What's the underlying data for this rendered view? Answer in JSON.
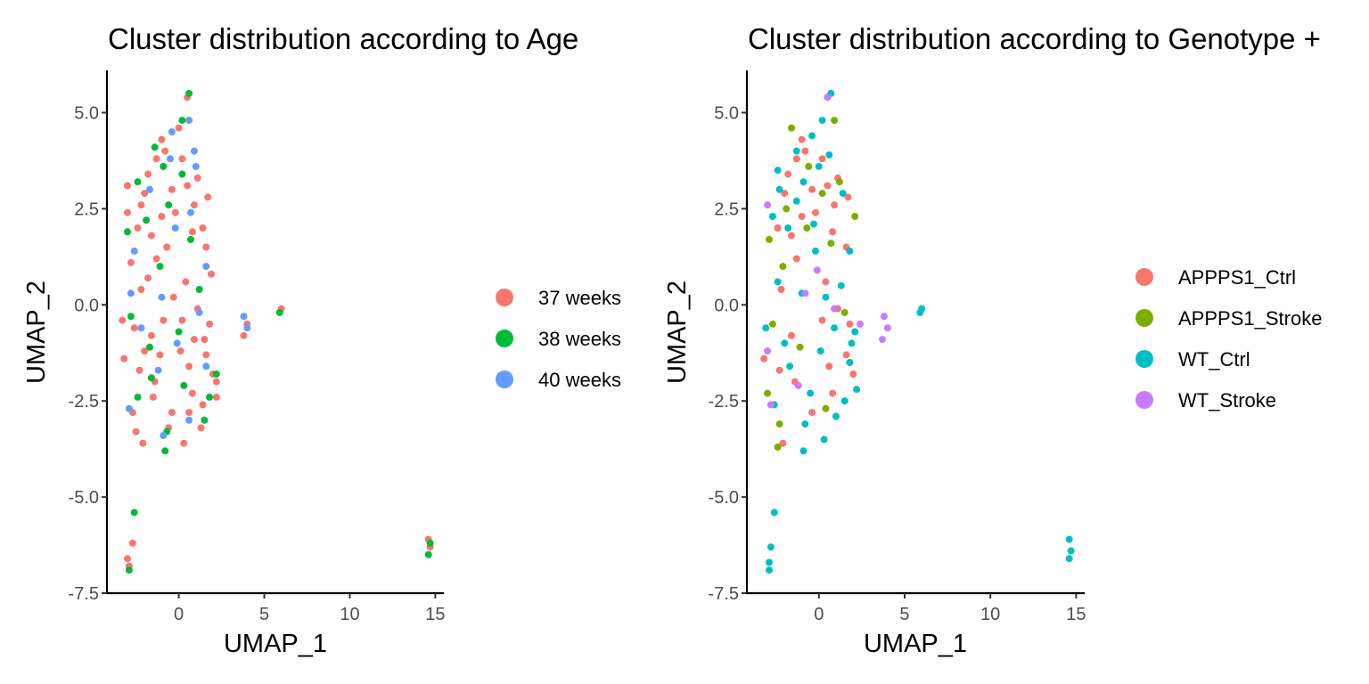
{
  "chart_data": [
    {
      "type": "scatter",
      "title": "Cluster distribution according to Age",
      "xlabel": "UMAP_1",
      "ylabel": "UMAP_2",
      "xlim": [
        -4.2,
        15.5
      ],
      "ylim": [
        -7.5,
        6.1
      ],
      "xticks": [
        0,
        5,
        10,
        15
      ],
      "yticks": [
        -7.5,
        -5.0,
        -2.5,
        0.0,
        2.5,
        5.0
      ],
      "xtick_labels": [
        "0",
        "5",
        "10",
        "15"
      ],
      "ytick_labels": [
        "-7.5",
        "-5.0",
        "-2.5",
        "0.0",
        "2.5",
        "5.0"
      ],
      "legend_position": "right",
      "grid": false,
      "series": [
        {
          "name": "37 weeks",
          "color": "#F8766D",
          "points": [
            [
              -1.8,
              3.4
            ],
            [
              -1.0,
              4.3
            ],
            [
              0.2,
              3.8
            ],
            [
              0.9,
              2.6
            ],
            [
              1.6,
              1.5
            ],
            [
              -2.4,
              2.0
            ],
            [
              -3.0,
              2.4
            ],
            [
              -1.3,
              1.2
            ],
            [
              0.4,
              0.6
            ],
            [
              1.8,
              -0.5
            ],
            [
              -2.6,
              -0.6
            ],
            [
              -3.2,
              -1.4
            ],
            [
              -1.4,
              -2.0
            ],
            [
              -0.4,
              -2.8
            ],
            [
              0.8,
              -2.3
            ],
            [
              2.0,
              -1.8
            ],
            [
              1.3,
              -3.2
            ],
            [
              -2.1,
              -3.6
            ],
            [
              -0.6,
              -3.2
            ],
            [
              -1.6,
              -0.8
            ],
            [
              0.1,
              -1.2
            ],
            [
              2.2,
              -2.4
            ],
            [
              1.6,
              -1.3
            ],
            [
              -0.8,
              4.0
            ],
            [
              0.5,
              5.4
            ],
            [
              0.0,
              4.6
            ],
            [
              -2.0,
              2.9
            ],
            [
              -1.0,
              2.3
            ],
            [
              1.1,
              3.3
            ],
            [
              -2.8,
              1.1
            ],
            [
              -2.2,
              0.4
            ],
            [
              -0.3,
              0.2
            ],
            [
              1.1,
              -0.1
            ],
            [
              -3.3,
              -0.4
            ],
            [
              -2.3,
              -1.7
            ],
            [
              -1.1,
              -1.3
            ],
            [
              0.6,
              -1.6
            ],
            [
              1.4,
              -2.6
            ],
            [
              -2.7,
              -2.8
            ],
            [
              0.3,
              -3.6
            ],
            [
              -0.4,
              3.0
            ],
            [
              0.8,
              1.9
            ],
            [
              -1.6,
              1.8
            ],
            [
              -3.0,
              3.1
            ],
            [
              1.7,
              2.8
            ],
            [
              0.2,
              -0.4
            ],
            [
              -2.5,
              -3.3
            ],
            [
              -3.0,
              -6.6
            ],
            [
              -2.7,
              -6.2
            ],
            [
              -2.9,
              -6.8
            ],
            [
              14.6,
              -6.1
            ],
            [
              14.7,
              -6.3
            ],
            [
              3.8,
              -0.8
            ],
            [
              4.0,
              -0.5
            ],
            [
              6.0,
              -0.1
            ],
            [
              2.2,
              -2.0
            ],
            [
              1.9,
              0.8
            ],
            [
              -1.5,
              -2.4
            ],
            [
              0.6,
              -2.8
            ],
            [
              -0.9,
              -0.4
            ],
            [
              1.5,
              -0.9
            ],
            [
              -2.0,
              -1.2
            ],
            [
              -0.2,
              2.4
            ],
            [
              -1.3,
              3.8
            ],
            [
              0.5,
              3.1
            ],
            [
              -0.7,
              1.5
            ],
            [
              1.4,
              2.0
            ],
            [
              -2.2,
              2.6
            ],
            [
              0.9,
              -0.9
            ],
            [
              -1.8,
              0.7
            ]
          ]
        },
        {
          "name": "38 weeks",
          "color": "#00BA38",
          "points": [
            [
              0.6,
              5.5
            ],
            [
              0.2,
              4.8
            ],
            [
              -1.4,
              4.1
            ],
            [
              -0.9,
              3.6
            ],
            [
              -2.4,
              3.2
            ],
            [
              -3.0,
              1.9
            ],
            [
              -0.6,
              2.6
            ],
            [
              0.7,
              1.7
            ],
            [
              1.2,
              0.4
            ],
            [
              -2.8,
              -0.3
            ],
            [
              -1.7,
              -1.1
            ],
            [
              0.0,
              -0.7
            ],
            [
              1.8,
              -2.4
            ],
            [
              -0.7,
              -3.3
            ],
            [
              -0.8,
              -3.8
            ],
            [
              2.2,
              -1.8
            ],
            [
              -2.4,
              -2.4
            ],
            [
              0.3,
              -2.1
            ],
            [
              -2.6,
              -5.4
            ],
            [
              -2.9,
              -6.9
            ],
            [
              14.6,
              -6.5
            ],
            [
              14.7,
              -6.2
            ],
            [
              5.9,
              -0.2
            ],
            [
              -1.9,
              2.2
            ],
            [
              0.2,
              3.4
            ],
            [
              1.5,
              -3.0
            ],
            [
              -1.1,
              1.0
            ],
            [
              -1.6,
              -1.9
            ]
          ]
        },
        {
          "name": "40 weeks",
          "color": "#619CFF",
          "points": [
            [
              0.6,
              4.8
            ],
            [
              -0.4,
              4.5
            ],
            [
              0.9,
              4.0
            ],
            [
              1.0,
              3.6
            ],
            [
              0.7,
              2.4
            ],
            [
              -1.7,
              3.0
            ],
            [
              -0.2,
              2.0
            ],
            [
              1.6,
              1.0
            ],
            [
              1.2,
              -0.2
            ],
            [
              -2.8,
              0.3
            ],
            [
              -2.2,
              -0.6
            ],
            [
              -0.1,
              -1.0
            ],
            [
              -1.2,
              -1.7
            ],
            [
              1.6,
              -1.6
            ],
            [
              -2.9,
              -2.7
            ],
            [
              -0.9,
              -3.4
            ],
            [
              0.6,
              -3.0
            ],
            [
              3.8,
              -0.3
            ],
            [
              4.0,
              -0.6
            ],
            [
              -2.6,
              1.4
            ],
            [
              -0.5,
              3.8
            ],
            [
              -1.0,
              0.2
            ]
          ]
        }
      ],
      "legend": {
        "items": [
          {
            "label": "37 weeks",
            "color": "#F8766D"
          },
          {
            "label": "38 weeks",
            "color": "#00BA38"
          },
          {
            "label": "40 weeks",
            "color": "#619CFF"
          }
        ]
      }
    },
    {
      "type": "scatter",
      "title": "Cluster distribution according to Genotype +",
      "xlabel": "UMAP_1",
      "ylabel": "UMAP_2",
      "xlim": [
        -4.2,
        15.5
      ],
      "ylim": [
        -7.5,
        6.1
      ],
      "xticks": [
        0,
        5,
        10,
        15
      ],
      "yticks": [
        -7.5,
        -5.0,
        -2.5,
        0.0,
        2.5,
        5.0
      ],
      "xtick_labels": [
        "0",
        "5",
        "10",
        "15"
      ],
      "ytick_labels": [
        "-7.5",
        "-5.0",
        "-2.5",
        "0.0",
        "2.5",
        "5.0"
      ],
      "legend_position": "right",
      "grid": false,
      "series": [
        {
          "name": "APPPS1_Ctrl",
          "color": "#F8766D",
          "points": [
            [
              -1.8,
              3.4
            ],
            [
              -1.0,
              4.3
            ],
            [
              0.2,
              3.8
            ],
            [
              0.9,
              2.6
            ],
            [
              1.6,
              1.5
            ],
            [
              -2.4,
              2.0
            ],
            [
              -1.3,
              1.2
            ],
            [
              0.4,
              0.6
            ],
            [
              1.8,
              -0.5
            ],
            [
              -3.2,
              -1.4
            ],
            [
              -1.4,
              -2.0
            ],
            [
              -0.4,
              -2.8
            ],
            [
              0.8,
              -2.3
            ],
            [
              2.0,
              -1.8
            ],
            [
              -2.1,
              -3.6
            ],
            [
              -1.6,
              -0.8
            ],
            [
              0.1,
              -1.2
            ],
            [
              1.6,
              -1.3
            ],
            [
              -0.8,
              4.0
            ],
            [
              0.5,
              5.4
            ],
            [
              -2.0,
              2.9
            ],
            [
              -1.0,
              2.3
            ],
            [
              1.1,
              3.3
            ],
            [
              -2.2,
              0.4
            ],
            [
              1.1,
              -0.1
            ],
            [
              -2.3,
              -1.7
            ],
            [
              0.6,
              -1.6
            ],
            [
              -0.4,
              3.0
            ],
            [
              0.8,
              1.9
            ],
            [
              -1.6,
              1.8
            ],
            [
              1.7,
              2.8
            ],
            [
              0.2,
              -0.4
            ],
            [
              -0.2,
              2.4
            ],
            [
              -1.3,
              3.8
            ],
            [
              0.5,
              3.1
            ]
          ]
        },
        {
          "name": "APPPS1_Stroke",
          "color": "#7CAE00",
          "points": [
            [
              -1.6,
              4.6
            ],
            [
              0.9,
              4.8
            ],
            [
              -0.6,
              3.6
            ],
            [
              1.2,
              3.2
            ],
            [
              -2.9,
              1.7
            ],
            [
              -0.7,
              2.0
            ],
            [
              0.7,
              1.6
            ],
            [
              2.1,
              2.3
            ],
            [
              -2.7,
              -0.5
            ],
            [
              -1.1,
              -1.1
            ],
            [
              0.4,
              -2.7
            ],
            [
              -3.0,
              -2.3
            ],
            [
              -2.3,
              -3.1
            ],
            [
              -2.4,
              -3.7
            ],
            [
              -1.9,
              2.5
            ],
            [
              1.5,
              -0.2
            ],
            [
              -2.1,
              1.0
            ],
            [
              0.2,
              2.9
            ]
          ]
        },
        {
          "name": "WT_Ctrl",
          "color": "#00BFC4",
          "points": [
            [
              0.7,
              5.5
            ],
            [
              0.2,
              4.8
            ],
            [
              -0.4,
              4.4
            ],
            [
              -1.3,
              4.0
            ],
            [
              -2.4,
              3.5
            ],
            [
              -0.9,
              3.2
            ],
            [
              0.6,
              3.9
            ],
            [
              1.4,
              2.9
            ],
            [
              -2.7,
              2.3
            ],
            [
              -1.8,
              2.0
            ],
            [
              -0.3,
              2.1
            ],
            [
              1.8,
              1.4
            ],
            [
              -2.4,
              0.6
            ],
            [
              -1.0,
              0.3
            ],
            [
              1.3,
              0.5
            ],
            [
              2.1,
              -0.7
            ],
            [
              -3.1,
              -0.6
            ],
            [
              -1.7,
              -1.6
            ],
            [
              0.1,
              -1.2
            ],
            [
              1.8,
              -1.5
            ],
            [
              -2.6,
              -2.6
            ],
            [
              -0.8,
              -3.1
            ],
            [
              0.3,
              -3.5
            ],
            [
              1.5,
              -2.5
            ],
            [
              2.2,
              -2.2
            ],
            [
              -0.9,
              -3.8
            ],
            [
              -2.9,
              -6.7
            ],
            [
              -2.8,
              -6.3
            ],
            [
              -2.6,
              -5.4
            ],
            [
              -2.9,
              -6.9
            ],
            [
              14.6,
              -6.1
            ],
            [
              14.7,
              -6.4
            ],
            [
              14.6,
              -6.6
            ],
            [
              5.9,
              -0.2
            ],
            [
              6.0,
              -0.1
            ],
            [
              -0.2,
              1.4
            ],
            [
              0.9,
              -0.6
            ],
            [
              -2.0,
              -1.0
            ],
            [
              -1.3,
              2.7
            ],
            [
              1.0,
              -2.9
            ],
            [
              0.4,
              0.2
            ],
            [
              -2.3,
              3.0
            ],
            [
              1.9,
              -1.0
            ],
            [
              -0.5,
              -2.3
            ],
            [
              0.0,
              3.6
            ]
          ]
        },
        {
          "name": "WT_Stroke",
          "color": "#C77CFF",
          "points": [
            [
              0.5,
              5.4
            ],
            [
              -3.0,
              2.6
            ],
            [
              -3.0,
              -1.2
            ],
            [
              -2.8,
              -2.6
            ],
            [
              -0.8,
              0.3
            ],
            [
              0.9,
              -0.1
            ],
            [
              3.8,
              -0.3
            ],
            [
              4.0,
              -0.6
            ],
            [
              3.7,
              -0.9
            ],
            [
              2.4,
              -0.5
            ],
            [
              -1.2,
              -2.1
            ],
            [
              -0.1,
              0.9
            ]
          ]
        }
      ],
      "legend": {
        "items": [
          {
            "label": "APPPS1_Ctrl",
            "color": "#F8766D"
          },
          {
            "label": "APPPS1_Stroke",
            "color": "#7CAE00"
          },
          {
            "label": "WT_Ctrl",
            "color": "#00BFC4"
          },
          {
            "label": "WT_Stroke",
            "color": "#C77CFF"
          }
        ]
      }
    }
  ]
}
